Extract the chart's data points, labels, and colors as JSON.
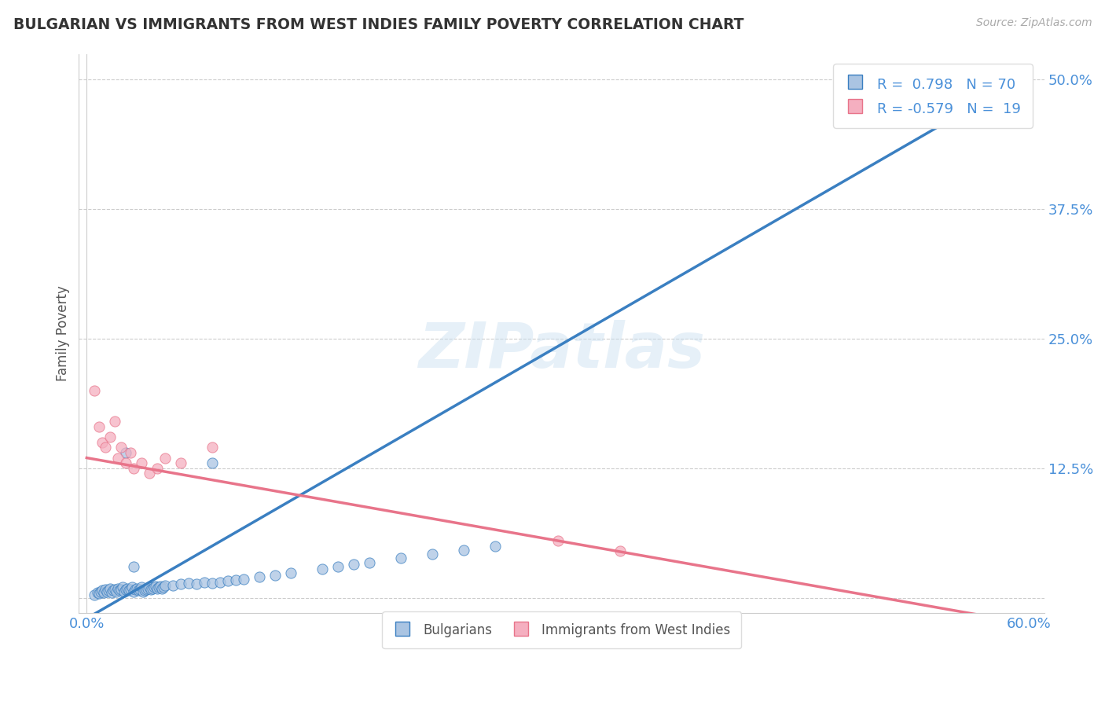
{
  "title": "BULGARIAN VS IMMIGRANTS FROM WEST INDIES FAMILY POVERTY CORRELATION CHART",
  "source": "Source: ZipAtlas.com",
  "xlabel": "",
  "ylabel": "Family Poverty",
  "xlim": [
    -0.005,
    0.61
  ],
  "ylim": [
    -0.015,
    0.525
  ],
  "xticks": [
    0.0,
    0.1,
    0.2,
    0.3,
    0.4,
    0.5,
    0.6
  ],
  "xticklabels": [
    "0.0%",
    "",
    "",
    "",
    "",
    "",
    "60.0%"
  ],
  "ytick_positions": [
    0.0,
    0.125,
    0.25,
    0.375,
    0.5
  ],
  "yticklabels": [
    "",
    "12.5%",
    "25.0%",
    "37.5%",
    "50.0%"
  ],
  "blue_R": 0.798,
  "blue_N": 70,
  "pink_R": -0.579,
  "pink_N": 19,
  "blue_color": "#aac4e2",
  "pink_color": "#f5afc0",
  "blue_line_color": "#3a7fc1",
  "pink_line_color": "#e8748a",
  "legend_label_blue": "Bulgarians",
  "legend_label_pink": "Immigrants from West Indies",
  "watermark": "ZIPatlas",
  "background_color": "#ffffff",
  "grid_color": "#cccccc",
  "axis_label_color": "#4a90d9",
  "title_color": "#333333",
  "blue_line_x0": 0.0,
  "blue_line_y0": -0.02,
  "blue_line_x1": 0.6,
  "blue_line_y1": 0.505,
  "pink_line_x0": 0.0,
  "pink_line_y0": 0.135,
  "pink_line_x1": 0.6,
  "pink_line_y1": -0.025,
  "blue_scatter_x": [
    0.005,
    0.007,
    0.008,
    0.009,
    0.01,
    0.011,
    0.012,
    0.013,
    0.014,
    0.015,
    0.016,
    0.017,
    0.018,
    0.019,
    0.02,
    0.021,
    0.022,
    0.023,
    0.024,
    0.025,
    0.026,
    0.027,
    0.028,
    0.029,
    0.03,
    0.031,
    0.032,
    0.033,
    0.034,
    0.035,
    0.036,
    0.037,
    0.038,
    0.039,
    0.04,
    0.041,
    0.042,
    0.043,
    0.044,
    0.045,
    0.046,
    0.047,
    0.048,
    0.049,
    0.05,
    0.055,
    0.06,
    0.065,
    0.07,
    0.075,
    0.08,
    0.085,
    0.09,
    0.095,
    0.1,
    0.11,
    0.12,
    0.13,
    0.15,
    0.16,
    0.17,
    0.18,
    0.2,
    0.22,
    0.24,
    0.26,
    0.08,
    0.03,
    0.025,
    0.52
  ],
  "blue_scatter_y": [
    0.003,
    0.005,
    0.004,
    0.006,
    0.007,
    0.005,
    0.008,
    0.006,
    0.007,
    0.009,
    0.005,
    0.007,
    0.008,
    0.006,
    0.009,
    0.007,
    0.008,
    0.01,
    0.006,
    0.008,
    0.009,
    0.007,
    0.008,
    0.01,
    0.006,
    0.008,
    0.009,
    0.007,
    0.008,
    0.01,
    0.006,
    0.007,
    0.008,
    0.009,
    0.01,
    0.008,
    0.009,
    0.01,
    0.011,
    0.009,
    0.01,
    0.011,
    0.009,
    0.01,
    0.012,
    0.012,
    0.013,
    0.014,
    0.013,
    0.015,
    0.014,
    0.015,
    0.016,
    0.017,
    0.018,
    0.02,
    0.022,
    0.024,
    0.028,
    0.03,
    0.032,
    0.034,
    0.038,
    0.042,
    0.046,
    0.05,
    0.13,
    0.03,
    0.14,
    0.46
  ],
  "pink_scatter_x": [
    0.005,
    0.008,
    0.01,
    0.012,
    0.015,
    0.018,
    0.02,
    0.022,
    0.025,
    0.028,
    0.03,
    0.035,
    0.04,
    0.045,
    0.05,
    0.06,
    0.08,
    0.3,
    0.34
  ],
  "pink_scatter_y": [
    0.2,
    0.165,
    0.15,
    0.145,
    0.155,
    0.17,
    0.135,
    0.145,
    0.13,
    0.14,
    0.125,
    0.13,
    0.12,
    0.125,
    0.135,
    0.13,
    0.145,
    0.055,
    0.045
  ]
}
